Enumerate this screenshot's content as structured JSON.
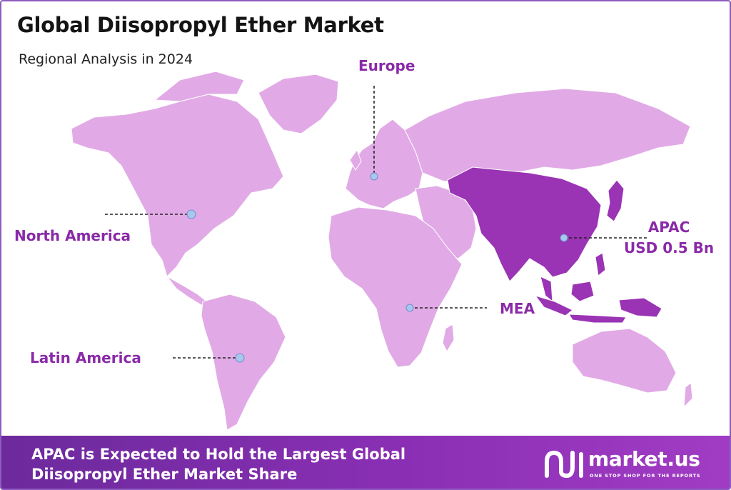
{
  "header": {
    "title": "Global Diisopropyl Ether Market",
    "subtitle": "Regional Analysis in 2024"
  },
  "regions": [
    {
      "id": "north-america",
      "label": "North America",
      "highlighted": false
    },
    {
      "id": "europe",
      "label": "Europe",
      "highlighted": false
    },
    {
      "id": "apac",
      "label": "APAC",
      "value_label": "USD 0.5 Bn",
      "highlighted": true
    },
    {
      "id": "mea",
      "label": "MEA",
      "highlighted": false
    },
    {
      "id": "latin-america",
      "label": "Latin America",
      "highlighted": false
    }
  ],
  "colors": {
    "land": "#e1aae6",
    "land_highlight": "#9a33b4",
    "label": "#8a2aa8",
    "marker": "#a9c6ee",
    "footer_start": "#6c2a9c",
    "footer_end": "#a13cc4"
  },
  "footer": {
    "line1": "APAC is Expected to Hold the Largest Global",
    "line2": "Diisopropyl Ether Market Share"
  },
  "logo": {
    "name": "market.us",
    "tagline": "ONE STOP SHOP FOR THE REPORTS",
    "icon": "market-us-logo-icon"
  }
}
